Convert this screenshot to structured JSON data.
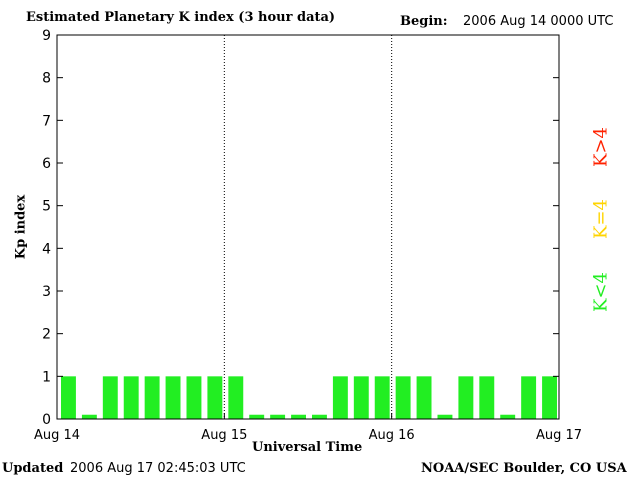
{
  "header": {
    "title": "Estimated Planetary K index (3 hour data)",
    "begin_label": "Begin:",
    "begin_value": "2006 Aug 14 0000 UTC"
  },
  "footer": {
    "updated_label": "Updated",
    "updated_value": "2006 Aug 17 02:45:03 UTC",
    "credit": "NOAA/SEC Boulder, CO USA"
  },
  "legend": [
    {
      "label": "K>4",
      "color": "#ff2200"
    },
    {
      "label": "K=4",
      "color": "#ffd400"
    },
    {
      "label": "K<4",
      "color": "#22ee22"
    }
  ],
  "chart_data": {
    "type": "bar",
    "title": "Estimated Planetary K index (3 hour data)",
    "xlabel": "Universal Time",
    "ylabel": "Kp index",
    "ylim": [
      0,
      9
    ],
    "yticks": [
      0,
      1,
      2,
      3,
      4,
      5,
      6,
      7,
      8,
      9
    ],
    "xticks": [
      "Aug 14",
      "Aug 15",
      "Aug 16",
      "Aug 17"
    ],
    "day_separators": [
      "Aug 15",
      "Aug 16"
    ],
    "interval_hours": 3,
    "start": "2006 Aug 14 0000 UTC",
    "bar_color": "#22ee22",
    "values": [
      1,
      0.1,
      1,
      1,
      1,
      1,
      1,
      1,
      1,
      0.1,
      0.1,
      0.1,
      0.1,
      1,
      1,
      1,
      1,
      1,
      0.1,
      1,
      1,
      0.1,
      1,
      1
    ]
  }
}
